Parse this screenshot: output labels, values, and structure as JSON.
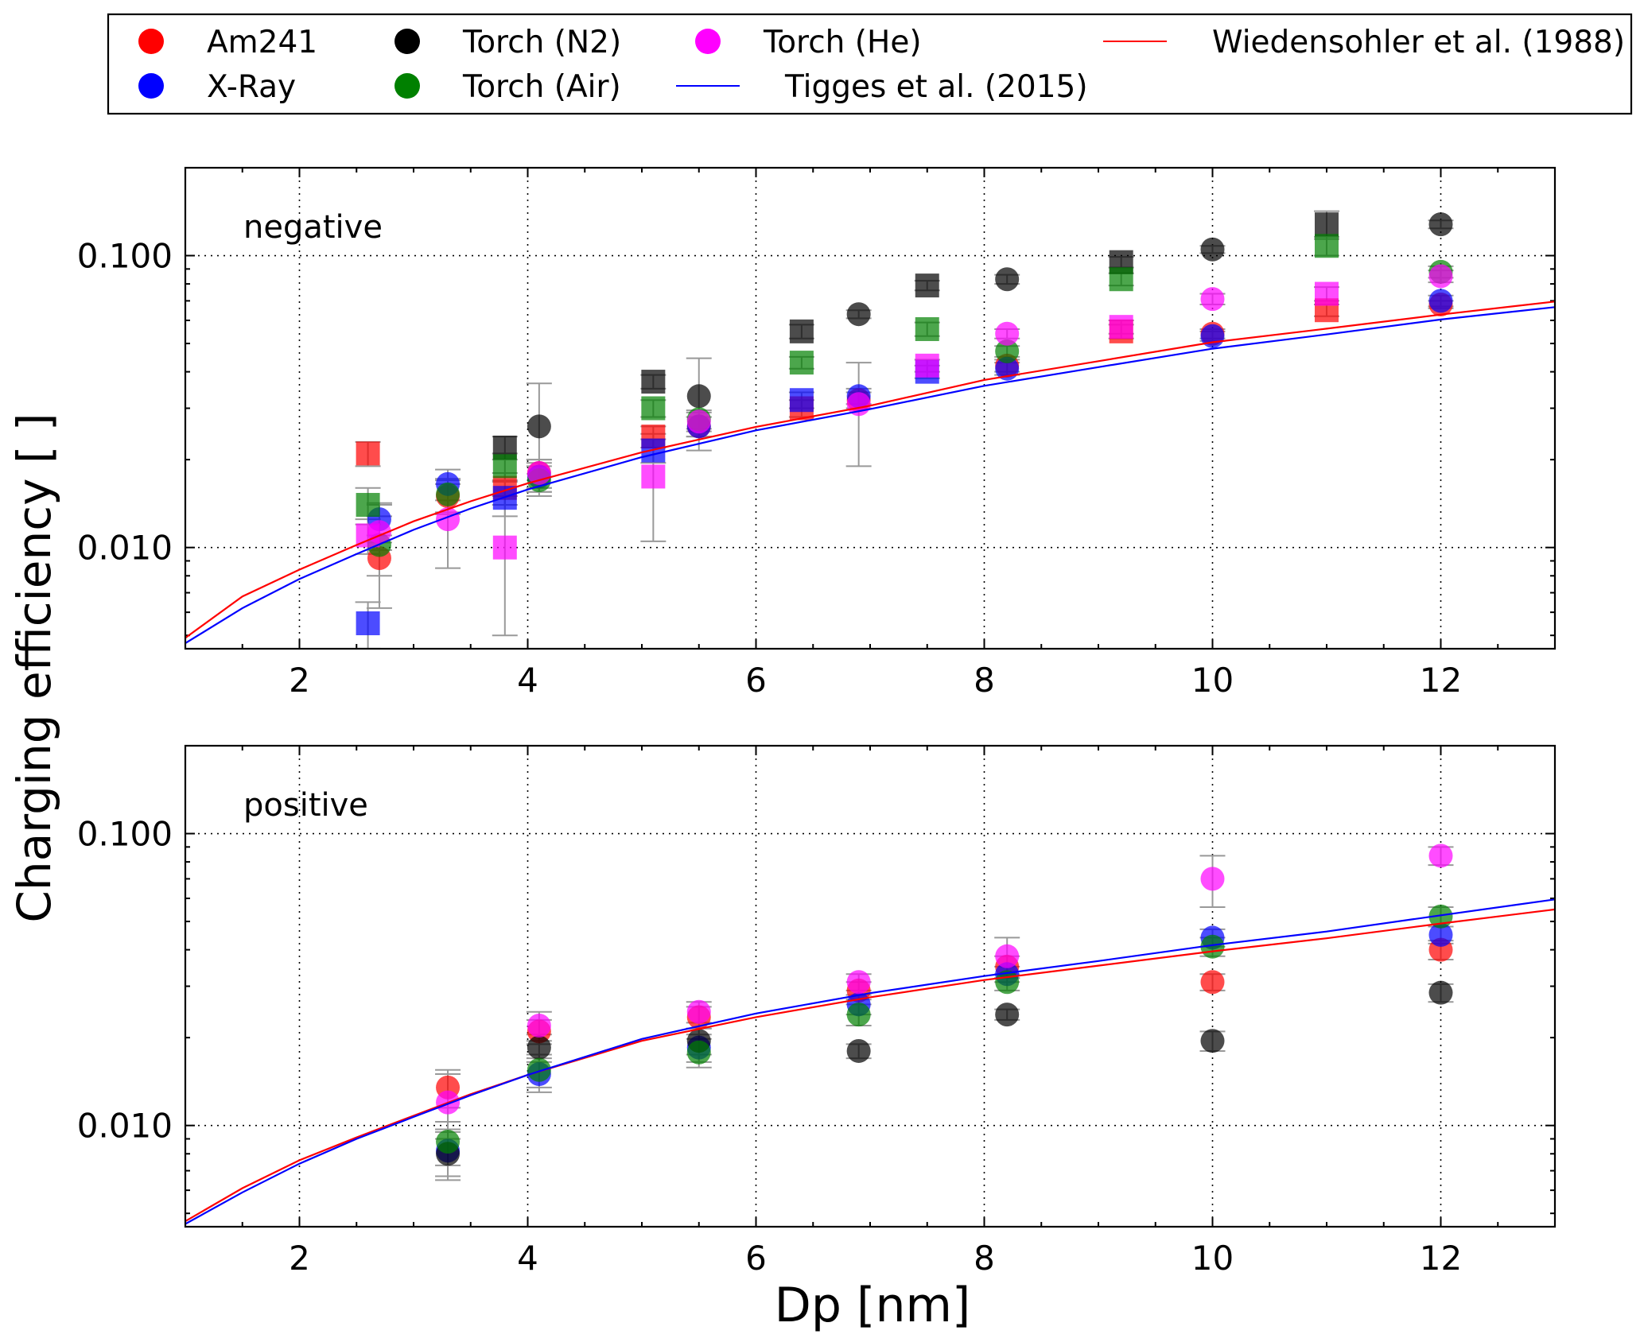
{
  "colors": {
    "Am241": "#ff0000",
    "X-Ray": "#0000ff",
    "Torch (N2)": "#000000",
    "Torch (Air)": "#008000",
    "Torch (He)": "#ff00ff",
    "Wiedensohler": "#ff0000",
    "Tigges": "#0000ff",
    "errorbar": "#999999"
  },
  "legend": {
    "entries": [
      {
        "label": "Am241",
        "kind": "marker",
        "series": "Am241"
      },
      {
        "label": "X-Ray",
        "kind": "marker",
        "series": "X-Ray"
      },
      {
        "label": "Torch (N2)",
        "kind": "marker",
        "series": "Torch (N2)"
      },
      {
        "label": "Torch (Air)",
        "kind": "marker",
        "series": "Torch (Air)"
      },
      {
        "label": "Torch (He)",
        "kind": "marker",
        "series": "Torch (He)"
      },
      {
        "label": "Tigges et al. (2015)",
        "kind": "line",
        "series": "Tigges"
      },
      {
        "label": "Wiedensohler et al. (1988)",
        "kind": "line",
        "series": "Wiedensohler"
      }
    ]
  },
  "chart_data": {
    "type": "scatter",
    "ylabel": "Charging efficiency [ ]",
    "xlabel": "Dp [nm]",
    "x_range": [
      1,
      13
    ],
    "y_range": [
      0.0045,
      0.2
    ],
    "y_scale": "log",
    "x_ticks": [
      2,
      4,
      6,
      8,
      10,
      12
    ],
    "y_ticks": [
      0.01,
      0.1
    ],
    "y_tick_labels": [
      "0.010",
      "0.100"
    ],
    "grid": true,
    "legend_position": "top",
    "panels": [
      {
        "label": "negative",
        "series": [
          {
            "name": "Am241",
            "marker": "circle",
            "points": [
              {
                "x": 2.7,
                "y": 0.0092,
                "err": 0.0012
              },
              {
                "x": 3.3,
                "y": 0.015,
                "err": 0.002
              },
              {
                "x": 4.1,
                "y": 0.018,
                "err": 0.002
              },
              {
                "x": 5.5,
                "y": 0.026,
                "err": 0.002
              },
              {
                "x": 6.9,
                "y": 0.032,
                "err": 0.002
              },
              {
                "x": 8.2,
                "y": 0.042,
                "err": 0.002
              },
              {
                "x": 10,
                "y": 0.054,
                "err": 0.002
              },
              {
                "x": 12,
                "y": 0.068,
                "err": 0.002
              }
            ]
          },
          {
            "name": "Am241",
            "marker": "square",
            "points": [
              {
                "x": 2.6,
                "y": 0.021,
                "err": 0.002
              },
              {
                "x": 3.8,
                "y": 0.016,
                "err": 0.002
              },
              {
                "x": 5.1,
                "y": 0.024,
                "err": 0.002
              },
              {
                "x": 6.4,
                "y": 0.03,
                "err": 0.002
              },
              {
                "x": 9.2,
                "y": 0.055,
                "err": 0.003
              },
              {
                "x": 11,
                "y": 0.065,
                "err": 0.003
              }
            ]
          },
          {
            "name": "X-Ray",
            "marker": "circle",
            "points": [
              {
                "x": 2.7,
                "y": 0.0125,
                "err": 0.0015
              },
              {
                "x": 3.3,
                "y": 0.0165,
                "err": 0.002
              },
              {
                "x": 4.1,
                "y": 0.0175,
                "err": 0.002
              },
              {
                "x": 5.5,
                "y": 0.026,
                "err": 0.002
              },
              {
                "x": 6.9,
                "y": 0.033,
                "err": 0.002
              },
              {
                "x": 8.2,
                "y": 0.041,
                "err": 0.002
              },
              {
                "x": 10,
                "y": 0.053,
                "err": 0.002
              },
              {
                "x": 12,
                "y": 0.07,
                "err": 0.003
              }
            ]
          },
          {
            "name": "X-Ray",
            "marker": "square",
            "points": [
              {
                "x": 2.6,
                "y": 0.0055,
                "err": 0.001
              },
              {
                "x": 3.8,
                "y": 0.0148,
                "err": 0.002
              },
              {
                "x": 5.1,
                "y": 0.0215,
                "err": 0.002
              },
              {
                "x": 6.4,
                "y": 0.032,
                "err": 0.002
              },
              {
                "x": 7.5,
                "y": 0.04,
                "err": 0.002
              }
            ]
          },
          {
            "name": "Torch (N2)",
            "marker": "circle",
            "points": [
              {
                "x": 4.1,
                "y": 0.026,
                "err": 0.0105
              },
              {
                "x": 5.5,
                "y": 0.033,
                "err": 0.0115
              },
              {
                "x": 6.9,
                "y": 0.063,
                "err": 0.002
              },
              {
                "x": 8.2,
                "y": 0.083,
                "err": 0.003
              },
              {
                "x": 10,
                "y": 0.105,
                "err": 0.003
              },
              {
                "x": 12,
                "y": 0.128,
                "err": 0.004
              }
            ]
          },
          {
            "name": "Torch (N2)",
            "marker": "square",
            "points": [
              {
                "x": 3.8,
                "y": 0.022,
                "err": 0.002
              },
              {
                "x": 5.1,
                "y": 0.037,
                "err": 0.002
              },
              {
                "x": 6.4,
                "y": 0.055,
                "err": 0.003
              },
              {
                "x": 7.5,
                "y": 0.079,
                "err": 0.003
              },
              {
                "x": 9.2,
                "y": 0.095,
                "err": 0.004
              },
              {
                "x": 11,
                "y": 0.128,
                "err": 0.014
              }
            ]
          },
          {
            "name": "Torch (Air)",
            "marker": "circle",
            "points": [
              {
                "x": 2.7,
                "y": 0.0102,
                "err": 0.004
              },
              {
                "x": 3.3,
                "y": 0.0152,
                "err": 0.002
              },
              {
                "x": 4.1,
                "y": 0.017,
                "err": 0.002
              },
              {
                "x": 5.5,
                "y": 0.0275,
                "err": 0.002
              },
              {
                "x": 8.2,
                "y": 0.047,
                "err": 0.002
              },
              {
                "x": 12,
                "y": 0.088,
                "err": 0.004
              }
            ]
          },
          {
            "name": "Torch (Air)",
            "marker": "square",
            "points": [
              {
                "x": 2.6,
                "y": 0.014,
                "err": 0.002
              },
              {
                "x": 3.8,
                "y": 0.019,
                "err": 0.002
              },
              {
                "x": 5.1,
                "y": 0.03,
                "err": 0.002
              },
              {
                "x": 6.4,
                "y": 0.043,
                "err": 0.002
              },
              {
                "x": 7.5,
                "y": 0.056,
                "err": 0.003
              },
              {
                "x": 9.2,
                "y": 0.083,
                "err": 0.004
              },
              {
                "x": 11,
                "y": 0.108,
                "err": 0.008
              }
            ]
          },
          {
            "name": "Torch (He)",
            "marker": "circle",
            "points": [
              {
                "x": 2.7,
                "y": 0.0113,
                "err": 0.0015
              },
              {
                "x": 3.3,
                "y": 0.0125,
                "err": 0.004
              },
              {
                "x": 4.1,
                "y": 0.018,
                "err": 0.002
              },
              {
                "x": 5.5,
                "y": 0.027,
                "err": 0.002
              },
              {
                "x": 6.9,
                "y": 0.031,
                "err": 0.012
              },
              {
                "x": 8.2,
                "y": 0.054,
                "err": 0.002
              },
              {
                "x": 10,
                "y": 0.071,
                "err": 0.003
              },
              {
                "x": 12,
                "y": 0.085,
                "err": 0.004
              }
            ]
          },
          {
            "name": "Torch (He)",
            "marker": "square",
            "points": [
              {
                "x": 2.6,
                "y": 0.011,
                "err": 0.0015
              },
              {
                "x": 3.8,
                "y": 0.01,
                "err": 0.005
              },
              {
                "x": 5.1,
                "y": 0.0175,
                "err": 0.007
              },
              {
                "x": 7.5,
                "y": 0.042,
                "err": 0.002
              },
              {
                "x": 9.2,
                "y": 0.057,
                "err": 0.003
              },
              {
                "x": 11,
                "y": 0.074,
                "err": 0.004
              }
            ]
          }
        ]
      },
      {
        "label": "positive",
        "series": [
          {
            "name": "Am241",
            "marker": "circle",
            "points": [
              {
                "x": 3.3,
                "y": 0.0135,
                "err": 0.002
              },
              {
                "x": 4.1,
                "y": 0.021,
                "err": 0.002
              },
              {
                "x": 5.5,
                "y": 0.0235,
                "err": 0.002
              },
              {
                "x": 6.9,
                "y": 0.029,
                "err": 0.002
              },
              {
                "x": 8.2,
                "y": 0.035,
                "err": 0.003
              },
              {
                "x": 10,
                "y": 0.031,
                "err": 0.002
              },
              {
                "x": 12,
                "y": 0.04,
                "err": 0.003
              }
            ]
          },
          {
            "name": "X-Ray",
            "marker": "circle",
            "points": [
              {
                "x": 3.3,
                "y": 0.0082,
                "err": 0.0015
              },
              {
                "x": 4.1,
                "y": 0.015,
                "err": 0.002
              },
              {
                "x": 5.5,
                "y": 0.0185,
                "err": 0.002
              },
              {
                "x": 6.9,
                "y": 0.026,
                "err": 0.002
              },
              {
                "x": 8.2,
                "y": 0.033,
                "err": 0.002
              },
              {
                "x": 10,
                "y": 0.044,
                "err": 0.003
              },
              {
                "x": 12,
                "y": 0.045,
                "err": 0.003
              }
            ]
          },
          {
            "name": "Torch (N2)",
            "marker": "circle",
            "points": [
              {
                "x": 3.3,
                "y": 0.008,
                "err": 0.0015
              },
              {
                "x": 4.1,
                "y": 0.0185,
                "err": 0.002
              },
              {
                "x": 5.5,
                "y": 0.0195,
                "err": 0.002
              },
              {
                "x": 6.9,
                "y": 0.018,
                "err": 0.001
              },
              {
                "x": 8.2,
                "y": 0.024,
                "err": 0.001
              },
              {
                "x": 10,
                "y": 0.0195,
                "err": 0.0015
              },
              {
                "x": 12,
                "y": 0.0285,
                "err": 0.002
              }
            ]
          },
          {
            "name": "Torch (Air)",
            "marker": "circle",
            "points": [
              {
                "x": 3.3,
                "y": 0.0088,
                "err": 0.0015
              },
              {
                "x": 4.1,
                "y": 0.0155,
                "err": 0.002
              },
              {
                "x": 5.5,
                "y": 0.0178,
                "err": 0.002
              },
              {
                "x": 6.9,
                "y": 0.024,
                "err": 0.002
              },
              {
                "x": 8.2,
                "y": 0.031,
                "err": 0.002
              },
              {
                "x": 10,
                "y": 0.041,
                "err": 0.003
              },
              {
                "x": 12,
                "y": 0.052,
                "err": 0.004
              }
            ]
          },
          {
            "name": "Torch (He)",
            "marker": "circle",
            "points": [
              {
                "x": 3.3,
                "y": 0.012,
                "err": 0.003
              },
              {
                "x": 4.1,
                "y": 0.022,
                "err": 0.0025
              },
              {
                "x": 5.5,
                "y": 0.0245,
                "err": 0.002
              },
              {
                "x": 6.9,
                "y": 0.031,
                "err": 0.002
              },
              {
                "x": 8.2,
                "y": 0.038,
                "err": 0.006
              },
              {
                "x": 10,
                "y": 0.07,
                "err": 0.014
              },
              {
                "x": 12,
                "y": 0.084,
                "err": 0.006
              }
            ]
          }
        ]
      }
    ],
    "curves": [
      {
        "name": "Wiedensohler et al. (1988)",
        "panel": "negative",
        "x": [
          1,
          1.5,
          2,
          2.5,
          3,
          3.5,
          4,
          5,
          6,
          7,
          8,
          9,
          10,
          11,
          12,
          13
        ],
        "y": [
          0.0049,
          0.0068,
          0.0084,
          0.0102,
          0.0123,
          0.0144,
          0.0166,
          0.0212,
          0.0259,
          0.0306,
          0.0375,
          0.0435,
          0.0505,
          0.0562,
          0.0628,
          0.0696
        ]
      },
      {
        "name": "Tigges et al. (2015)",
        "panel": "negative",
        "x": [
          1,
          1.5,
          2,
          2.5,
          3,
          3.5,
          4,
          5,
          6,
          7,
          8,
          9,
          10,
          11,
          12,
          13
        ],
        "y": [
          0.0047,
          0.0062,
          0.0078,
          0.0095,
          0.0115,
          0.0136,
          0.0158,
          0.0204,
          0.0252,
          0.0298,
          0.0358,
          0.0415,
          0.048,
          0.0537,
          0.0604,
          0.0666
        ]
      },
      {
        "name": "Wiedensohler et al. (1988)",
        "panel": "positive",
        "x": [
          1,
          1.5,
          2,
          2.5,
          3,
          3.5,
          4,
          5,
          6,
          7,
          8,
          9,
          10,
          11,
          12,
          13
        ],
        "y": [
          0.0047,
          0.0061,
          0.0076,
          0.0091,
          0.0108,
          0.0128,
          0.0149,
          0.0195,
          0.0235,
          0.0275,
          0.0315,
          0.0353,
          0.0395,
          0.0438,
          0.0492,
          0.055
        ]
      },
      {
        "name": "Tigges et al. (2015)",
        "panel": "positive",
        "x": [
          1,
          1.5,
          2,
          2.5,
          3,
          3.5,
          4,
          5,
          6,
          7,
          8,
          9,
          10,
          11,
          12,
          13
        ],
        "y": [
          0.0046,
          0.0059,
          0.0074,
          0.009,
          0.0107,
          0.0127,
          0.0149,
          0.0198,
          0.0242,
          0.0284,
          0.0325,
          0.0366,
          0.0415,
          0.0462,
          0.0525,
          0.0595
        ]
      }
    ]
  }
}
